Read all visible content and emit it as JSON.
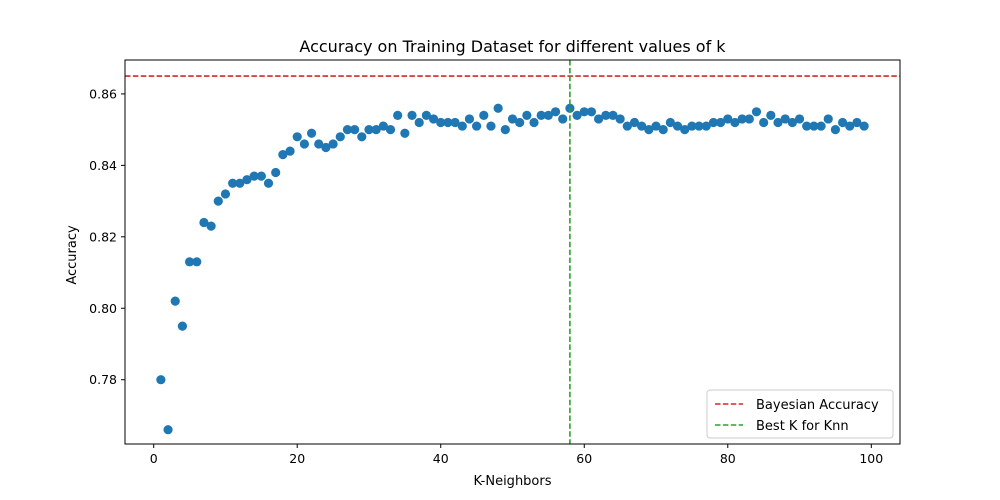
{
  "chart_data": {
    "type": "scatter",
    "title": "Accuracy on Training Dataset for different values of k",
    "xlabel": "K-Neighbors",
    "ylabel": "Accuracy",
    "xlim": [
      -4,
      104
    ],
    "ylim": [
      0.762,
      0.8695
    ],
    "xticks": [
      0,
      20,
      40,
      60,
      80,
      100
    ],
    "yticks": [
      0.78,
      0.8,
      0.82,
      0.84,
      0.86
    ],
    "ytick_labels": [
      "0.78",
      "0.80",
      "0.82",
      "0.84",
      "0.86"
    ],
    "grid": false,
    "legend_position": "lower-right",
    "colors": {
      "points": "#1f77b4",
      "bayesian": "#d62728",
      "best_k": "#2ca02c"
    },
    "points": {
      "x": [
        1,
        2,
        3,
        4,
        5,
        6,
        7,
        8,
        9,
        10,
        11,
        12,
        13,
        14,
        15,
        16,
        17,
        18,
        19,
        20,
        21,
        22,
        23,
        24,
        25,
        26,
        27,
        28,
        29,
        30,
        31,
        32,
        33,
        34,
        35,
        36,
        37,
        38,
        39,
        40,
        41,
        42,
        43,
        44,
        45,
        46,
        47,
        48,
        49,
        50,
        51,
        52,
        53,
        54,
        55,
        56,
        57,
        58,
        59,
        60,
        61,
        62,
        63,
        64,
        65,
        66,
        67,
        68,
        69,
        70,
        71,
        72,
        73,
        74,
        75,
        76,
        77,
        78,
        79,
        80,
        81,
        82,
        83,
        84,
        85,
        86,
        87,
        88,
        89,
        90,
        91,
        92,
        93,
        94,
        95,
        96,
        97,
        98,
        99
      ],
      "y": [
        0.78,
        0.766,
        0.802,
        0.795,
        0.813,
        0.813,
        0.824,
        0.823,
        0.83,
        0.832,
        0.835,
        0.835,
        0.836,
        0.837,
        0.837,
        0.835,
        0.838,
        0.843,
        0.844,
        0.848,
        0.846,
        0.849,
        0.846,
        0.845,
        0.846,
        0.848,
        0.85,
        0.85,
        0.848,
        0.85,
        0.85,
        0.851,
        0.85,
        0.854,
        0.849,
        0.854,
        0.852,
        0.854,
        0.853,
        0.852,
        0.852,
        0.852,
        0.851,
        0.853,
        0.851,
        0.854,
        0.851,
        0.856,
        0.85,
        0.853,
        0.852,
        0.854,
        0.852,
        0.854,
        0.854,
        0.855,
        0.853,
        0.856,
        0.854,
        0.855,
        0.855,
        0.853,
        0.854,
        0.854,
        0.853,
        0.851,
        0.852,
        0.851,
        0.85,
        0.851,
        0.85,
        0.852,
        0.851,
        0.85,
        0.851,
        0.851,
        0.851,
        0.852,
        0.852,
        0.853,
        0.852,
        0.853,
        0.853,
        0.855,
        0.852,
        0.854,
        0.852,
        0.853,
        0.852,
        0.853,
        0.851,
        0.851,
        0.851,
        0.853,
        0.85,
        0.852,
        0.851,
        0.852,
        0.851
      ]
    },
    "bayesian_accuracy": 0.865,
    "best_k": 58,
    "legend": [
      {
        "label": "Bayesian Accuracy",
        "color": "#d62728"
      },
      {
        "label": "Best K for Knn",
        "color": "#2ca02c"
      }
    ]
  }
}
